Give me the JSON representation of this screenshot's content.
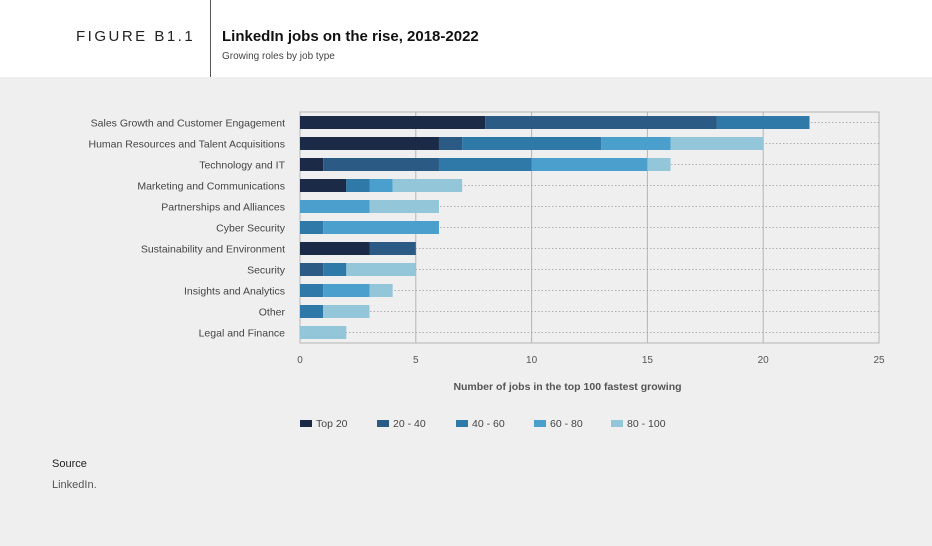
{
  "header": {
    "figure_label": "FIGURE B1.1",
    "title": "LinkedIn jobs on the rise, 2018-2022",
    "subtitle": "Growing roles by job type"
  },
  "source": {
    "title": "Source",
    "text": "LinkedIn."
  },
  "chart_data": {
    "type": "bar",
    "orientation": "horizontal",
    "stacked": true,
    "title": "",
    "xlabel": "Number of jobs in the top 100 fastest growing",
    "ylabel": "",
    "xlim": [
      0,
      25
    ],
    "xticks": [
      0,
      5,
      10,
      15,
      20,
      25
    ],
    "grid": true,
    "legend_position": "bottom",
    "categories": [
      "Sales Growth and Customer Engagement",
      "Human Resources and Talent Acquisitions",
      "Technology and IT",
      "Marketing and Communications",
      "Partnerships and Alliances",
      "Cyber Security",
      "Sustainability and Environment",
      "Security",
      "Insights and Analytics",
      "Other",
      "Legal and Finance"
    ],
    "series": [
      {
        "name": "Top 20",
        "color": "#1b2a47",
        "values": [
          8,
          6,
          1,
          2,
          0,
          0,
          3,
          0,
          0,
          0,
          0
        ]
      },
      {
        "name": "20 - 40",
        "color": "#2b5a84",
        "values": [
          10,
          1,
          5,
          0,
          0,
          0,
          2,
          1,
          0,
          0,
          0
        ]
      },
      {
        "name": "40 - 60",
        "color": "#2f79a8",
        "values": [
          4,
          6,
          4,
          1,
          0,
          1,
          0,
          1,
          1,
          1,
          0
        ]
      },
      {
        "name": "60 - 80",
        "color": "#4a9fcc",
        "values": [
          0,
          3,
          5,
          1,
          3,
          5,
          0,
          0,
          2,
          0,
          0
        ]
      },
      {
        "name": "80 - 100",
        "color": "#92c6d8",
        "values": [
          0,
          4,
          1,
          3,
          3,
          0,
          0,
          3,
          1,
          2,
          2
        ]
      }
    ]
  }
}
